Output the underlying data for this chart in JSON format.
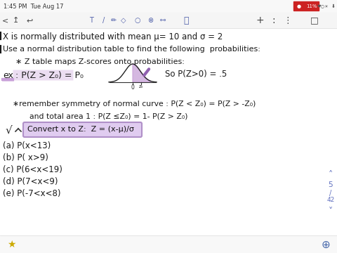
{
  "bg_color": "#ffffff",
  "status_bar_left": "1:45 PM  Tue Aug 17",
  "status_bar_right": "11%",
  "line1": "X is normally distributed with mean μ= 10 and σ = 2",
  "line2": "Use a normal distribution table to find the following  probabilities:",
  "line3": "∗ Z table maps Z-scores onto probabilities:",
  "line4_ex": "ex : P(Z > Z₀) = P₀",
  "line4_right": "So P(Z>0) = .5",
  "line5": "∗remember symmetry of normal curve : P(Z < Z₀) = P(Z > -Z₀)",
  "line6": "  and total area 1 : P(Z ≤Z₀) = 1- P(Z > Z₀)",
  "line7_box": "Convert x to Z:  Z = (x-μ)/σ",
  "parts": [
    "(a) P(x<13)",
    "(b) P( x>9)",
    "(c) P(6<x<19)",
    "(d) P(7<x<9)",
    "(e) P(-7<x<8)"
  ],
  "highlight_color": "#c8a0d8",
  "box_border_color": "#b090c8",
  "box_fill_color": "#e0ccf0",
  "curve_fill_color": "#c8a0d8",
  "slash_color": "#9060b0",
  "text_color": "#1a1a1a",
  "nav_color": "#6070c0",
  "red_battery_color": "#cc2222"
}
